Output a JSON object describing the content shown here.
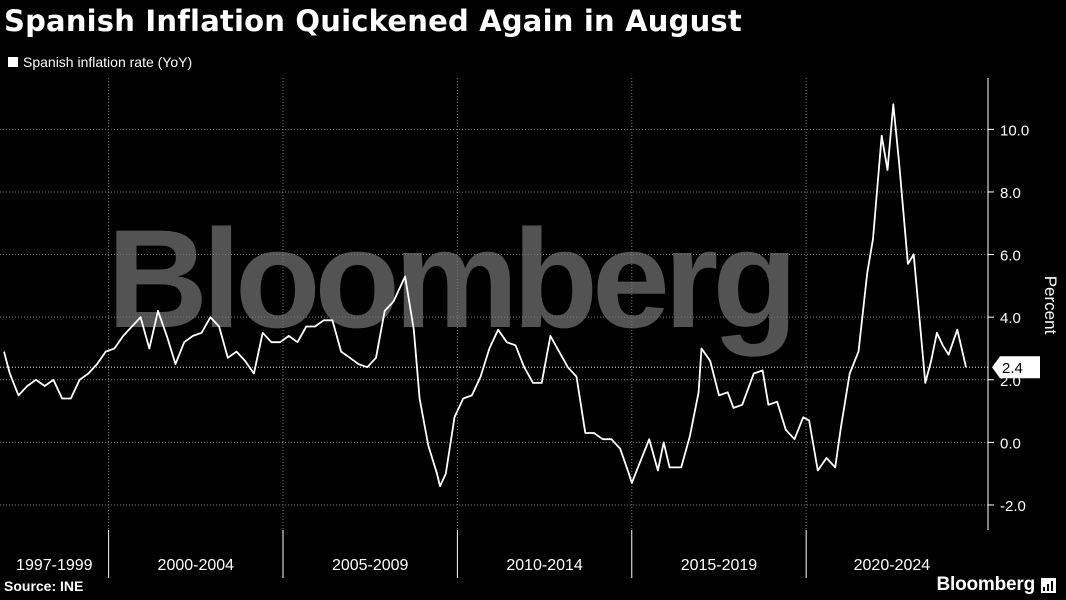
{
  "header": {
    "title": "Spanish Inflation Quickened Again in August"
  },
  "footer": {
    "source": "Source: INE",
    "brand": "Bloomberg"
  },
  "watermark": "Bloomberg",
  "colors": {
    "background": "#000000",
    "line": "#ffffff",
    "grid": "#7a7a7a",
    "watermark": "#6a6a6a"
  },
  "chart_data": {
    "type": "line",
    "ylabel": "Percent",
    "ylim": [
      -2.8,
      11.8
    ],
    "yticks": [
      -2.0,
      0.0,
      2.0,
      4.0,
      6.0,
      8.0,
      10.0
    ],
    "ytick_labels": [
      "-2.0",
      "0.0",
      "2.0",
      "4.0",
      "6.0",
      "8.0",
      "10.0"
    ],
    "x_range": [
      "1997-01",
      "2024-08"
    ],
    "periods": [
      "1997-1999",
      "2000-2004",
      "2005-2009",
      "2010-2014",
      "2015-2019",
      "2020-2024"
    ],
    "period_starts": [
      "2000-01",
      "2005-01",
      "2010-01",
      "2015-01",
      "2020-01"
    ],
    "last_value_label": "2.4",
    "reference_line": 2.4,
    "legend": {
      "position": "top-left"
    },
    "grid": true,
    "series": [
      {
        "name": "Spanish inflation rate (YoY)",
        "x": [
          "1997-01",
          "1997-03",
          "1997-06",
          "1997-09",
          "1997-12",
          "1998-03",
          "1998-06",
          "1998-09",
          "1998-12",
          "1999-03",
          "1999-06",
          "1999-09",
          "1999-12",
          "2000-03",
          "2000-06",
          "2000-09",
          "2000-12",
          "2001-03",
          "2001-06",
          "2001-09",
          "2001-12",
          "2002-03",
          "2002-06",
          "2002-09",
          "2002-12",
          "2003-03",
          "2003-06",
          "2003-09",
          "2003-12",
          "2004-03",
          "2004-06",
          "2004-09",
          "2004-12",
          "2005-03",
          "2005-06",
          "2005-09",
          "2005-12",
          "2006-03",
          "2006-06",
          "2006-09",
          "2006-12",
          "2007-03",
          "2007-06",
          "2007-09",
          "2007-12",
          "2008-03",
          "2008-07",
          "2008-10",
          "2008-12",
          "2009-03",
          "2009-06",
          "2009-07",
          "2009-09",
          "2009-12",
          "2010-03",
          "2010-06",
          "2010-09",
          "2010-12",
          "2011-03",
          "2011-06",
          "2011-09",
          "2011-12",
          "2012-03",
          "2012-06",
          "2012-09",
          "2012-12",
          "2013-03",
          "2013-06",
          "2013-09",
          "2013-12",
          "2014-03",
          "2014-06",
          "2014-09",
          "2014-12",
          "2015-01",
          "2015-04",
          "2015-07",
          "2015-10",
          "2015-12",
          "2016-02",
          "2016-06",
          "2016-09",
          "2016-12",
          "2017-01",
          "2017-04",
          "2017-07",
          "2017-10",
          "2017-12",
          "2018-03",
          "2018-07",
          "2018-10",
          "2018-12",
          "2019-03",
          "2019-06",
          "2019-09",
          "2019-12",
          "2020-02",
          "2020-05",
          "2020-08",
          "2020-11",
          "2021-01",
          "2021-04",
          "2021-07",
          "2021-10",
          "2021-12",
          "2022-03",
          "2022-05",
          "2022-07",
          "2022-09",
          "2022-12",
          "2023-02",
          "2023-06",
          "2023-08",
          "2023-10",
          "2023-12",
          "2024-02",
          "2024-05",
          "2024-07",
          "2024-08"
        ],
        "values": [
          2.9,
          2.2,
          1.5,
          1.8,
          2.0,
          1.8,
          2.0,
          1.4,
          1.4,
          2.0,
          2.2,
          2.5,
          2.9,
          3.0,
          3.4,
          3.7,
          4.0,
          3.0,
          4.2,
          3.4,
          2.5,
          3.2,
          3.4,
          3.5,
          4.0,
          3.7,
          2.7,
          2.9,
          2.6,
          2.2,
          3.5,
          3.2,
          3.2,
          3.4,
          3.2,
          3.7,
          3.7,
          3.9,
          3.9,
          2.9,
          2.7,
          2.5,
          2.4,
          2.7,
          4.2,
          4.5,
          5.3,
          3.6,
          1.4,
          -0.1,
          -1.0,
          -1.4,
          -1.0,
          0.8,
          1.4,
          1.5,
          2.1,
          3.0,
          3.6,
          3.2,
          3.1,
          2.4,
          1.9,
          1.9,
          3.4,
          2.9,
          2.4,
          2.1,
          0.3,
          0.3,
          0.1,
          0.1,
          -0.2,
          -1.0,
          -1.3,
          -0.6,
          0.1,
          -0.9,
          0.0,
          -0.8,
          -0.8,
          0.2,
          1.6,
          3.0,
          2.6,
          1.5,
          1.6,
          1.1,
          1.2,
          2.2,
          2.3,
          1.2,
          1.3,
          0.4,
          0.1,
          0.8,
          0.7,
          -0.9,
          -0.5,
          -0.8,
          0.5,
          2.2,
          2.9,
          5.4,
          6.5,
          9.8,
          8.7,
          10.8,
          8.9,
          5.7,
          6.0,
          1.9,
          2.6,
          3.5,
          3.1,
          2.8,
          3.6,
          2.8,
          2.4
        ]
      }
    ]
  }
}
